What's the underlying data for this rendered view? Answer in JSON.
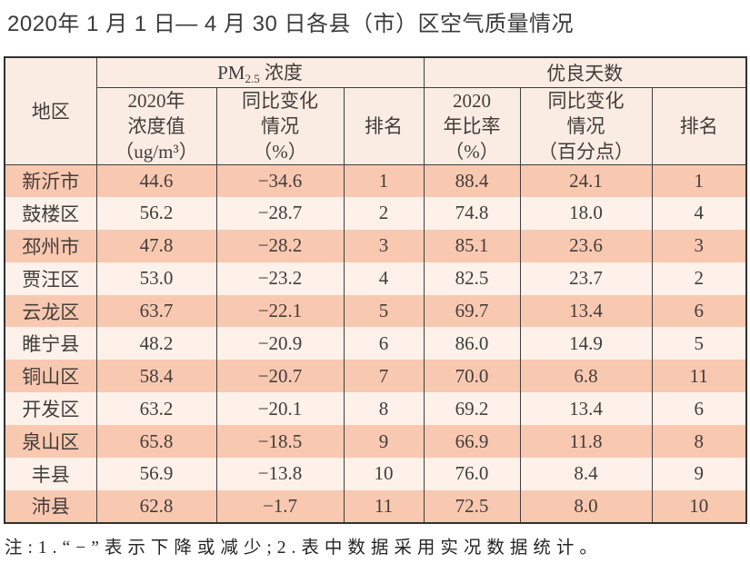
{
  "title": "2020年 1 月 1 日— 4 月 30 日各县（市）区空气质量情况",
  "table": {
    "region_header": "地区",
    "pm25_group": {
      "prefix": "PM",
      "sub": "2.5",
      "suffix": " 浓度"
    },
    "days_group": "优良天数",
    "sub_headers": {
      "pm_value": "2020年\n浓度值\n（ug/m³）",
      "pm_change": "同比变化\n情况\n（%）",
      "pm_rank": "排名",
      "ratio": "2020\n年比率\n（%）",
      "ratio_change": "同比变化\n情况\n（百分点）",
      "ratio_rank": "排名"
    },
    "rows": [
      [
        "新沂市",
        "44.6",
        "−34.6",
        "1",
        "88.4",
        "24.1",
        "1"
      ],
      [
        "鼓楼区",
        "56.2",
        "−28.7",
        "2",
        "74.8",
        "18.0",
        "4"
      ],
      [
        "邳州市",
        "47.8",
        "−28.2",
        "3",
        "85.1",
        "23.6",
        "3"
      ],
      [
        "贾汪区",
        "53.0",
        "−23.2",
        "4",
        "82.5",
        "23.7",
        "2"
      ],
      [
        "云龙区",
        "63.7",
        "−22.1",
        "5",
        "69.7",
        "13.4",
        "6"
      ],
      [
        "睢宁县",
        "48.2",
        "−20.9",
        "6",
        "86.0",
        "14.9",
        "5"
      ],
      [
        "铜山区",
        "58.4",
        "−20.7",
        "7",
        "70.0",
        "6.8",
        "11"
      ],
      [
        "开发区",
        "63.2",
        "−20.1",
        "8",
        "69.2",
        "13.4",
        "6"
      ],
      [
        "泉山区",
        "65.8",
        "−18.5",
        "9",
        "66.9",
        "11.8",
        "8"
      ],
      [
        "丰县",
        "56.9",
        "−13.8",
        "10",
        "76.0",
        "8.4",
        "9"
      ],
      [
        "沛县",
        "62.8",
        "−1.7",
        "11",
        "72.5",
        "8.0",
        "10"
      ]
    ],
    "column_names": [
      "region",
      "pm-value",
      "pm-change",
      "pm-rank",
      "ratio",
      "ratio-change",
      "ratio-rank"
    ]
  },
  "note": "注:1.“−”表示下降或减少;2.表中数据采用实况数据统计。",
  "colors": {
    "row_salmon": "#f9c8b1",
    "row_light": "#fdf1ea",
    "header_bg": "#fbece3",
    "border": "#3f3f3f"
  },
  "chart_data": {
    "type": "table",
    "title": "2020年1月1日—4月30日各县（市）区空气质量情况",
    "column_groups": [
      "PM2.5 浓度",
      "优良天数"
    ],
    "columns": [
      "地区",
      "2020年浓度值（ug/m³）",
      "同比变化情况（%）",
      "排名",
      "2020年比率（%）",
      "同比变化情况（百分点）",
      "排名"
    ],
    "rows": [
      [
        "新沂市",
        44.6,
        -34.6,
        1,
        88.4,
        24.1,
        1
      ],
      [
        "鼓楼区",
        56.2,
        -28.7,
        2,
        74.8,
        18.0,
        4
      ],
      [
        "邳州市",
        47.8,
        -28.2,
        3,
        85.1,
        23.6,
        3
      ],
      [
        "贾汪区",
        53.0,
        -23.2,
        4,
        82.5,
        23.7,
        2
      ],
      [
        "云龙区",
        63.7,
        -22.1,
        5,
        69.7,
        13.4,
        6
      ],
      [
        "睢宁县",
        48.2,
        -20.9,
        6,
        86.0,
        14.9,
        5
      ],
      [
        "铜山区",
        58.4,
        -20.7,
        7,
        70.0,
        6.8,
        11
      ],
      [
        "开发区",
        63.2,
        -20.1,
        8,
        69.2,
        13.4,
        6
      ],
      [
        "泉山区",
        65.8,
        -18.5,
        9,
        66.9,
        11.8,
        8
      ],
      [
        "丰县",
        56.9,
        -13.8,
        10,
        76.0,
        8.4,
        9
      ],
      [
        "沛县",
        62.8,
        -1.7,
        11,
        72.5,
        8.0,
        10
      ]
    ],
    "note": "注:1.“−”表示下降或减少;2.表中数据采用实况数据统计。"
  }
}
